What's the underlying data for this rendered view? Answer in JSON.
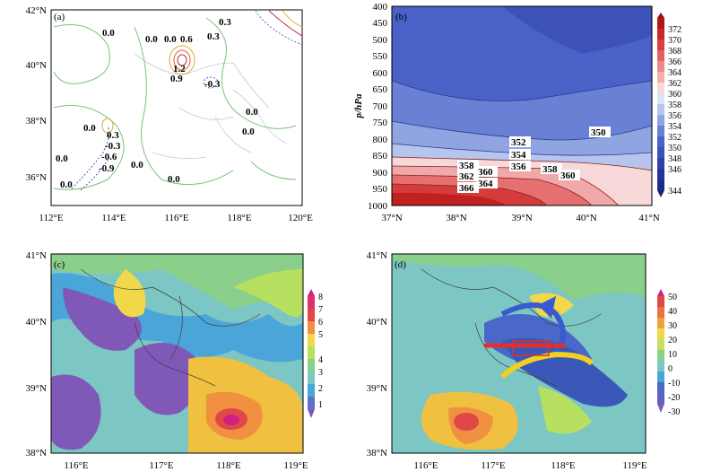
{
  "panels": {
    "a": {
      "label": "(a)",
      "x_ticks": [
        "112°E",
        "114°E",
        "116°E",
        "118°E",
        "120°E"
      ],
      "y_ticks": [
        "42°N",
        "40°N",
        "38°N",
        "36°N"
      ],
      "contour_labels": [
        "0.0",
        "0.0",
        "0.0",
        "0.6",
        "0.3",
        "0.3",
        "1.2",
        "0.9",
        "-0.3",
        "0.0",
        "0.0",
        "0.3",
        "-0.3",
        "-0.6",
        "-0.9",
        "0.0",
        "0.0",
        "0.0",
        "0.0",
        "0.0"
      ]
    },
    "b": {
      "label": "(b)",
      "ylabel": "p/hPa",
      "x_ticks": [
        "37°N",
        "38°N",
        "39°N",
        "40°N",
        "41°N"
      ],
      "y_ticks": [
        "400",
        "450",
        "500",
        "550",
        "600",
        "650",
        "700",
        "750",
        "800",
        "850",
        "900",
        "950",
        "1000"
      ],
      "contour_labels": [
        "350",
        "352",
        "354",
        "356",
        "358",
        "360",
        "362",
        "364",
        "366",
        "358",
        "360"
      ],
      "colorbar": [
        "372",
        "370",
        "368",
        "366",
        "364",
        "362",
        "360",
        "358",
        "356",
        "354",
        "352",
        "350",
        "348",
        "346",
        "344"
      ]
    },
    "c": {
      "label": "(c)",
      "x_ticks": [
        "116°E",
        "117°E",
        "118°E",
        "119°E"
      ],
      "y_ticks": [
        "41°N",
        "40°N",
        "39°N",
        "38°N"
      ],
      "colorbar": [
        "8",
        "7",
        "6",
        "5",
        "4",
        "3",
        "2",
        "1"
      ]
    },
    "d": {
      "label": "(d)",
      "x_ticks": [
        "116°E",
        "117°E",
        "118°E",
        "119°E"
      ],
      "y_ticks": [
        "41°N",
        "40°N",
        "39°N",
        "38°N"
      ],
      "colorbar": [
        "50",
        "40",
        "30",
        "20",
        "10",
        "0",
        "-10",
        "-20",
        "-30"
      ]
    }
  }
}
